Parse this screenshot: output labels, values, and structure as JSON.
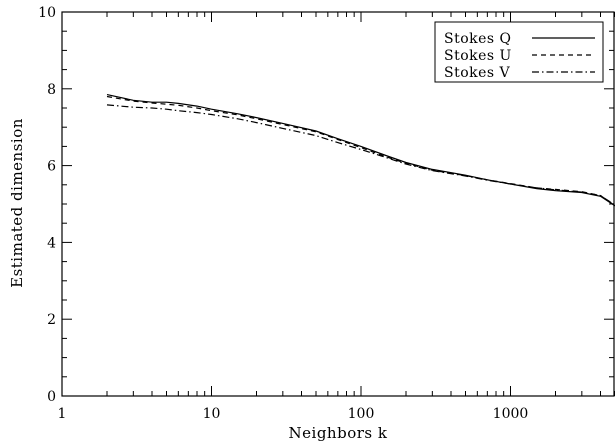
{
  "chart_data": {
    "type": "line",
    "title": "",
    "xlabel": "Neighbors k",
    "ylabel": "Estimated dimension",
    "x_scale": "log",
    "xlim": [
      1,
      5000
    ],
    "ylim": [
      0,
      10
    ],
    "x_ticks": [
      {
        "value": 1,
        "label": "1"
      },
      {
        "value": 10,
        "label": "10"
      },
      {
        "value": 100,
        "label": "100"
      },
      {
        "value": 1000,
        "label": "1000"
      }
    ],
    "y_ticks": [
      {
        "value": 0,
        "label": "0"
      },
      {
        "value": 2,
        "label": "2"
      },
      {
        "value": 4,
        "label": "4"
      },
      {
        "value": 6,
        "label": "6"
      },
      {
        "value": 8,
        "label": "8"
      },
      {
        "value": 10,
        "label": "10"
      }
    ],
    "grid": false,
    "legend": "top-right",
    "series": [
      {
        "name": "Stokes Q",
        "style": "solid",
        "x": [
          2,
          3,
          4,
          5,
          6,
          8,
          10,
          15,
          20,
          30,
          50,
          70,
          100,
          150,
          200,
          300,
          500,
          700,
          1000,
          1500,
          2000,
          3000,
          4000,
          5000
        ],
        "y": [
          7.85,
          7.7,
          7.65,
          7.65,
          7.62,
          7.55,
          7.47,
          7.35,
          7.25,
          7.1,
          6.9,
          6.7,
          6.5,
          6.25,
          6.08,
          5.9,
          5.75,
          5.63,
          5.52,
          5.4,
          5.35,
          5.3,
          5.2,
          4.95
        ]
      },
      {
        "name": "Stokes U",
        "style": "dashed",
        "x": [
          2,
          3,
          4,
          5,
          6,
          8,
          10,
          15,
          20,
          30,
          50,
          70,
          100,
          150,
          200,
          300,
          500,
          700,
          1000,
          1500,
          2000,
          3000,
          4000,
          5000
        ],
        "y": [
          7.8,
          7.68,
          7.63,
          7.6,
          7.57,
          7.5,
          7.43,
          7.32,
          7.22,
          7.07,
          6.88,
          6.68,
          6.47,
          6.22,
          6.06,
          5.88,
          5.74,
          5.63,
          5.53,
          5.42,
          5.38,
          5.32,
          5.22,
          4.97
        ]
      },
      {
        "name": "Stokes V",
        "style": "dashdot",
        "x": [
          2,
          3,
          4,
          5,
          6,
          8,
          10,
          15,
          20,
          30,
          50,
          70,
          100,
          150,
          200,
          300,
          500,
          700,
          1000,
          1500,
          2000,
          3000,
          4000,
          5000
        ],
        "y": [
          7.58,
          7.52,
          7.5,
          7.47,
          7.43,
          7.38,
          7.33,
          7.22,
          7.12,
          6.97,
          6.78,
          6.6,
          6.42,
          6.2,
          6.04,
          5.87,
          5.73,
          5.62,
          5.52,
          5.42,
          5.37,
          5.31,
          5.22,
          4.97
        ]
      }
    ]
  }
}
